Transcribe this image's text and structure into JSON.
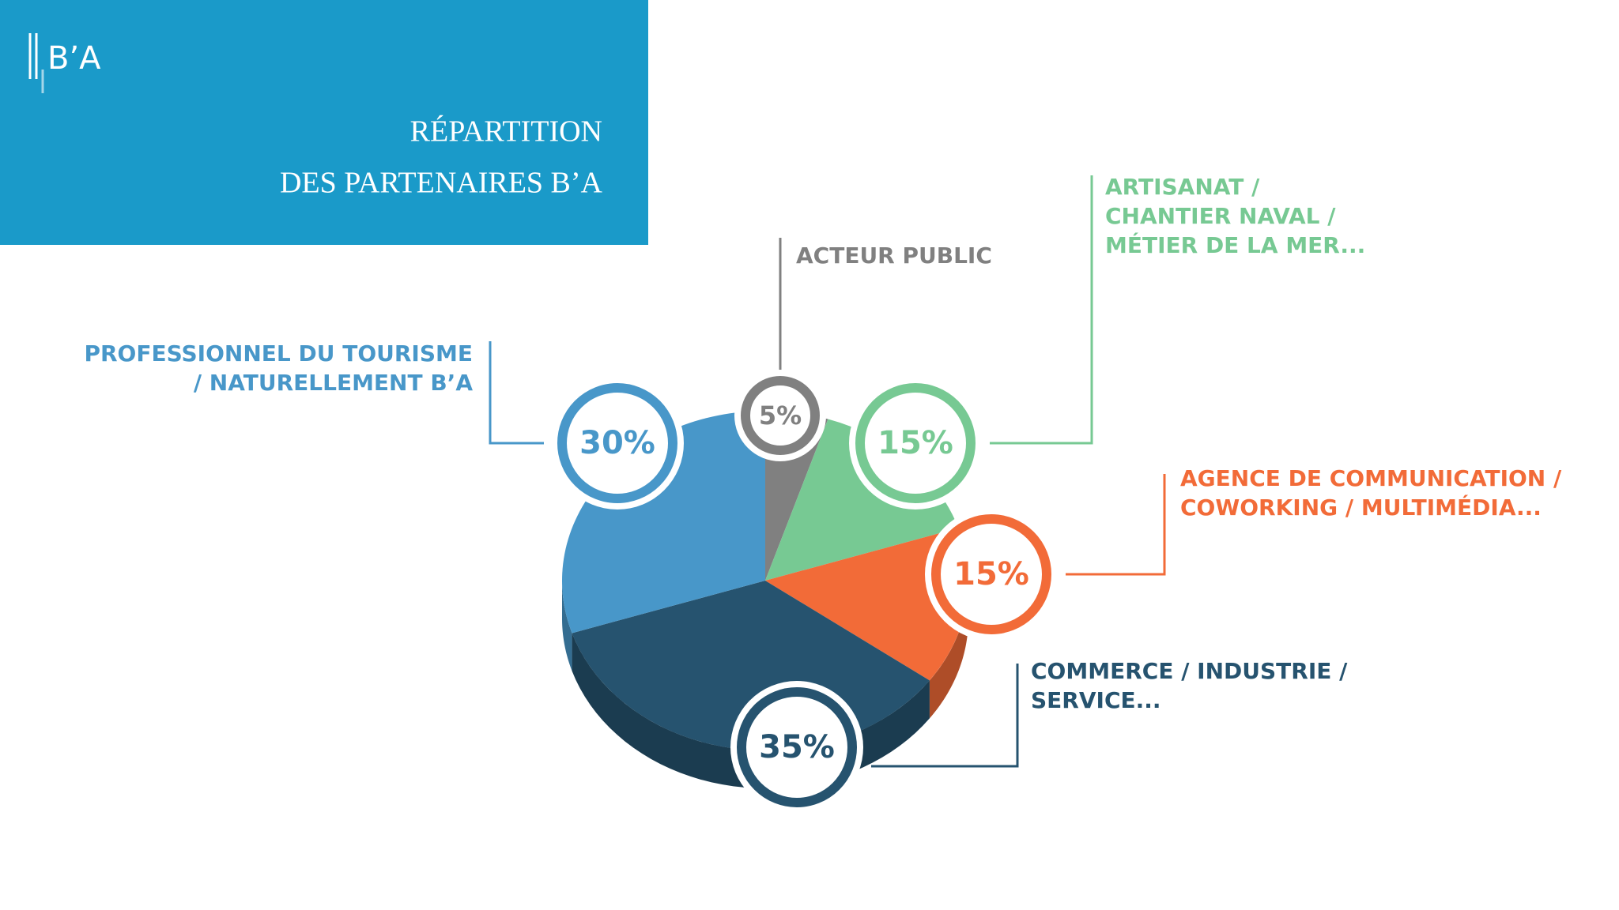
{
  "logo": "B’A",
  "chart_data": {
    "type": "pie",
    "title": [
      "RÉPARTITION",
      "DES PARTENAIRES B’A"
    ],
    "categories": [
      [
        "ACTEUR PUBLIC"
      ],
      [
        "ARTISANAT /",
        "CHANTIER NAVAL /",
        "MÉTIER DE LA MER..."
      ],
      [
        "AGENCE DE COMMUNICATION /",
        "COWORKING / MULTIMÉDIA..."
      ],
      [
        "COMMERCE / INDUSTRIE /",
        "SERVICE..."
      ],
      [
        "PROFESSIONNEL DU TOURISME",
        "/ NATURELLEMENT B’A"
      ]
    ],
    "values": [
      5,
      15,
      15,
      35,
      30
    ],
    "value_labels": [
      "5%",
      "15%",
      "15%",
      "35%",
      "30%"
    ],
    "colors": [
      "#808080",
      "#77c993",
      "#f26b38",
      "#26536f",
      "#4897c9"
    ]
  }
}
